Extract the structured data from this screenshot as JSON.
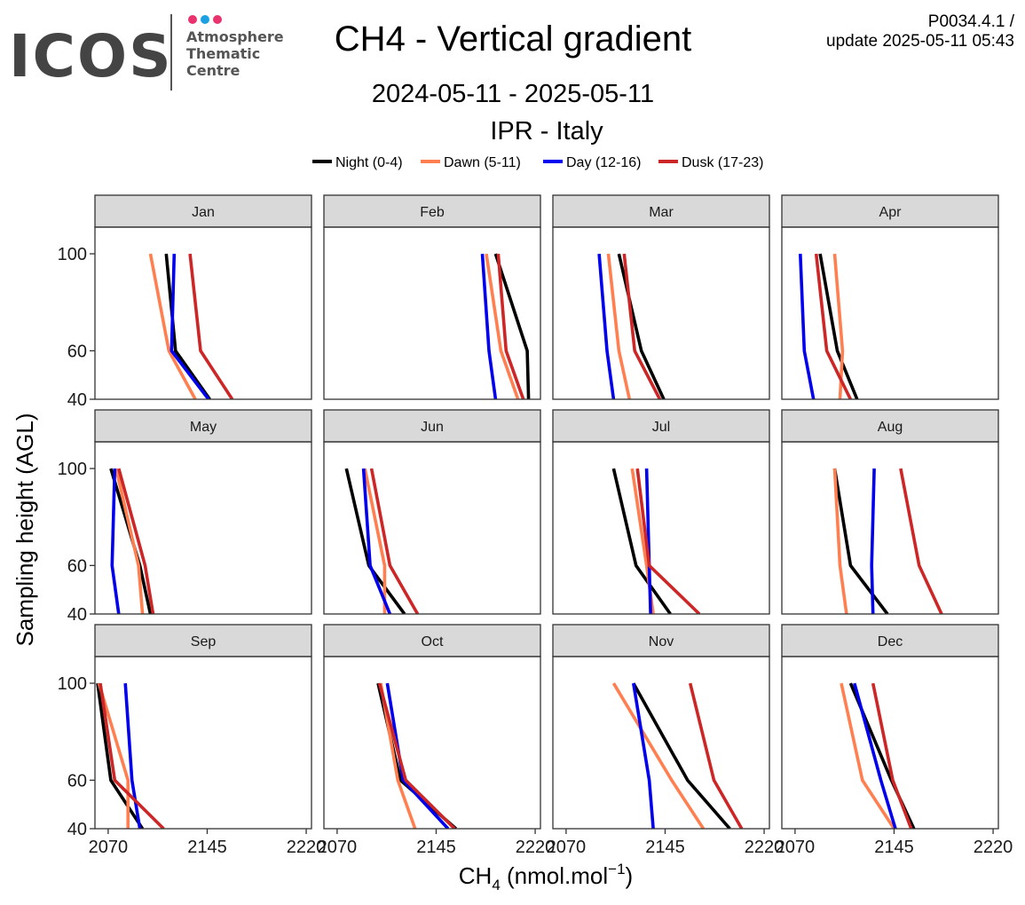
{
  "header": {
    "logo_word": "ICOS",
    "logo_sub": [
      "Atmosphere",
      "Thematic",
      "Centre"
    ],
    "logo_dot_colors": [
      "#e8336e",
      "#1ba1e2",
      "#e8336e"
    ],
    "title": "CH4 - Vertical gradient",
    "version_line1": "P0034.4.1 /",
    "version_line2": "update  2025-05-11 05:43",
    "date_range": "2024-05-11 - 2025-05-11",
    "station": "IPR - Italy"
  },
  "chart_data": {
    "type": "line",
    "layout": "facet-grid",
    "xlabel": "CH",
    "xlabel_sub": "4",
    "xlabel_unit": " (nmol.mol",
    "xlabel_sup": "−1",
    "xlabel_close": ")",
    "ylabel": "Sampling height (AGL)",
    "xlim": [
      2060,
      2224
    ],
    "ylim": [
      40,
      111
    ],
    "x_ticks": [
      2070,
      2145,
      2220
    ],
    "x_tick_labels": [
      "2070",
      "2145",
      "2220"
    ],
    "y_ticks": [
      40,
      60,
      100
    ],
    "y_tick_labels": [
      "40",
      "60",
      "100"
    ],
    "heights": [
      40,
      60,
      100
    ],
    "legend_position": "top",
    "series_defs": [
      {
        "name": "Night (0-4)",
        "color": "#000000"
      },
      {
        "name": "Dawn (5-11)",
        "color": "#ff7f50"
      },
      {
        "name": "Day (12-16)",
        "color": "#0000ee"
      },
      {
        "name": "Dusk (17-23)",
        "color": "#cd2626"
      }
    ],
    "panels": [
      {
        "month": "Jan",
        "series": [
          [
            2147,
            2121,
            2114
          ],
          [
            2136,
            2116,
            2102
          ],
          [
            2146,
            2118,
            2120
          ],
          [
            2164,
            2140,
            2132
          ]
        ]
      },
      {
        "month": "Feb",
        "series": [
          [
            2215,
            2214,
            2190
          ],
          [
            2207,
            2194,
            2183
          ],
          [
            2190,
            2185,
            2180
          ],
          [
            2211,
            2198,
            2192
          ]
        ]
      },
      {
        "month": "Mar",
        "series": [
          [
            2144,
            2127,
            2110
          ],
          [
            2118,
            2110,
            2102
          ],
          [
            2106,
            2101,
            2095
          ],
          [
            2141,
            2122,
            2114
          ]
        ]
      },
      {
        "month": "Apr",
        "series": [
          [
            2117,
            2102,
            2089
          ],
          [
            2104,
            2106,
            2100
          ],
          [
            2084,
            2077,
            2074
          ],
          [
            2112,
            2094,
            2086
          ]
        ]
      },
      {
        "month": "May",
        "series": [
          [
            2102,
            2094,
            2072
          ],
          [
            2096,
            2093,
            2076
          ],
          [
            2078,
            2073,
            2075
          ],
          [
            2104,
            2098,
            2078
          ]
        ]
      },
      {
        "month": "Jun",
        "series": [
          [
            2121,
            2094,
            2077
          ],
          [
            2106,
            2106,
            2091
          ],
          [
            2110,
            2095,
            2090
          ],
          [
            2131,
            2110,
            2096
          ]
        ]
      },
      {
        "month": "Jul",
        "series": [
          [
            2149,
            2123,
            2106
          ],
          [
            2136,
            2131,
            2120
          ],
          [
            2134,
            2133,
            2131
          ],
          [
            2171,
            2133,
            2124
          ]
        ]
      },
      {
        "month": "Aug",
        "series": [
          [
            2140,
            2112,
            2100
          ],
          [
            2109,
            2104,
            2100
          ],
          [
            2129,
            2128,
            2130
          ],
          [
            2181,
            2164,
            2150
          ]
        ]
      },
      {
        "month": "Sep",
        "series": [
          [
            2096,
            2072,
            2062
          ],
          [
            2085,
            2085,
            2063
          ],
          [
            2094,
            2088,
            2083
          ],
          [
            2112,
            2075,
            2064
          ]
        ]
      },
      {
        "month": "Oct",
        "series": [
          [
            2160,
            2118,
            2101
          ],
          [
            2129,
            2116,
            2103
          ],
          [
            2154,
            2120,
            2108
          ],
          [
            2159,
            2122,
            2102
          ]
        ]
      },
      {
        "month": "Nov",
        "series": [
          [
            2194,
            2162,
            2121
          ],
          [
            2174,
            2150,
            2106
          ],
          [
            2136,
            2133,
            2121
          ],
          [
            2203,
            2182,
            2164
          ]
        ]
      },
      {
        "month": "Dec",
        "series": [
          [
            2160,
            2143,
            2112
          ],
          [
            2145,
            2121,
            2105
          ],
          [
            2146,
            2135,
            2115
          ],
          [
            2158,
            2144,
            2129
          ]
        ]
      }
    ]
  }
}
